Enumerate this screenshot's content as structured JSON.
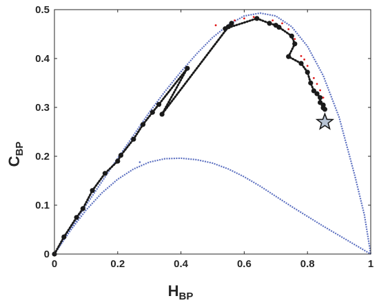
{
  "chart_data": {
    "type": "scatter",
    "title": "",
    "xlabel": {
      "main": "H",
      "sub": "BP"
    },
    "ylabel": {
      "main": "C",
      "sub": "BP"
    },
    "xlim": [
      0,
      1
    ],
    "ylim": [
      0,
      0.5
    ],
    "xticks": [
      0,
      0.2,
      0.4,
      0.6,
      0.8,
      1
    ],
    "yticks": [
      0,
      0.1,
      0.2,
      0.3,
      0.4,
      0.5
    ],
    "xtick_labels": [
      "0",
      "0.2",
      "0.4",
      "0.6",
      "0.8",
      "1"
    ],
    "ytick_labels": [
      "0",
      "0.1",
      "0.2",
      "0.3",
      "0.4",
      "0.5"
    ],
    "grid": false,
    "box": true,
    "colors": {
      "bounds": "#5b6fc0",
      "trajectory": "#1a1a1a",
      "red_points": "#e01b1b",
      "star": "#b8c4d4"
    },
    "bounds": {
      "upper": {
        "x": [
          0,
          0.05,
          0.1,
          0.15,
          0.2,
          0.25,
          0.3,
          0.35,
          0.4,
          0.45,
          0.5,
          0.55,
          0.6,
          0.65,
          0.7,
          0.75,
          0.8,
          0.85,
          0.9,
          0.95,
          0.98,
          1.0
        ],
        "y": [
          0,
          0.05,
          0.1,
          0.148,
          0.196,
          0.243,
          0.29,
          0.333,
          0.373,
          0.41,
          0.443,
          0.469,
          0.487,
          0.493,
          0.487,
          0.465,
          0.425,
          0.365,
          0.28,
          0.16,
          0.08,
          0
        ]
      },
      "lower": {
        "x": [
          0,
          0.05,
          0.1,
          0.15,
          0.2,
          0.25,
          0.3,
          0.35,
          0.4,
          0.45,
          0.5,
          0.55,
          0.6,
          0.65,
          0.7,
          0.75,
          0.8,
          0.85,
          0.9,
          0.95,
          1.0
        ],
        "y": [
          0,
          0.048,
          0.09,
          0.125,
          0.153,
          0.174,
          0.188,
          0.195,
          0.196,
          0.193,
          0.186,
          0.174,
          0.158,
          0.139,
          0.118,
          0.097,
          0.077,
          0.057,
          0.038,
          0.019,
          0
        ]
      }
    },
    "trajectory": {
      "x": [
        0,
        0.03,
        0.07,
        0.09,
        0.12,
        0.16,
        0.2,
        0.21,
        0.25,
        0.28,
        0.31,
        0.33,
        0.42,
        0.34,
        0.55,
        0.56,
        0.54,
        0.64,
        0.68,
        0.7,
        0.71,
        0.75,
        0.76,
        0.74,
        0.78,
        0.8,
        0.81,
        0.82,
        0.83,
        0.84,
        0.84,
        0.85,
        0.85,
        0.855
      ],
      "y": [
        0,
        0.035,
        0.075,
        0.093,
        0.13,
        0.165,
        0.19,
        0.202,
        0.235,
        0.265,
        0.29,
        0.306,
        0.38,
        0.286,
        0.465,
        0.472,
        0.461,
        0.482,
        0.472,
        0.468,
        0.464,
        0.446,
        0.43,
        0.404,
        0.39,
        0.372,
        0.35,
        0.334,
        0.328,
        0.32,
        0.31,
        0.305,
        0.299,
        0.296
      ]
    },
    "red_points": {
      "x": [
        0.57,
        0.6,
        0.63,
        0.69,
        0.72,
        0.74,
        0.76,
        0.78,
        0.79,
        0.8,
        0.82,
        0.83,
        0.84,
        0.85,
        0.51
      ],
      "y": [
        0.478,
        0.482,
        0.485,
        0.478,
        0.472,
        0.46,
        0.44,
        0.405,
        0.398,
        0.385,
        0.36,
        0.348,
        0.335,
        0.32,
        0.468
      ]
    },
    "stray_point": {
      "x": 0.27,
      "y": 0.188
    },
    "star_point": {
      "x": 0.855,
      "y": 0.27
    }
  }
}
